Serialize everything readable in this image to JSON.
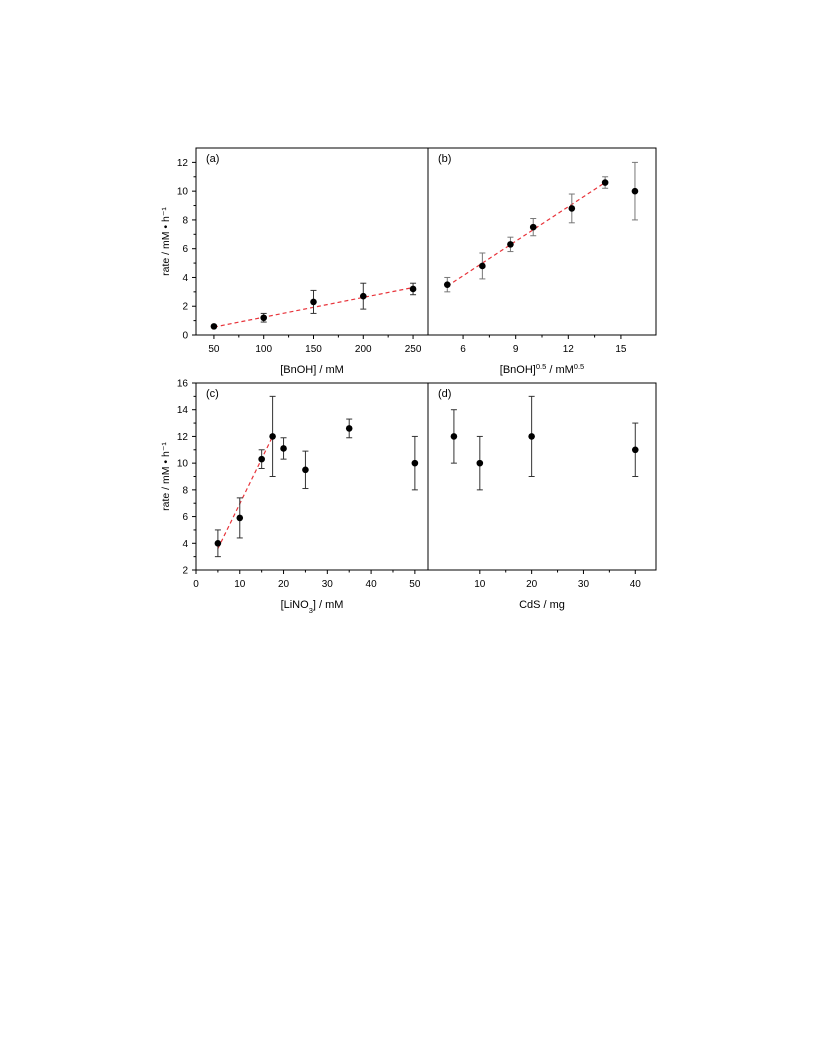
{
  "chart_data": [
    {
      "panel": "a",
      "type": "scatter",
      "panel_label": "(a)",
      "ylabel": "rate / mM • h⁻¹",
      "xlabel_parts": [
        {
          "t": "[BnOH] / mM"
        }
      ],
      "xlim": [
        32,
        265
      ],
      "ylim": [
        0,
        13
      ],
      "xticks": [
        50,
        100,
        150,
        200,
        250
      ],
      "yticks": [
        0,
        2,
        4,
        6,
        8,
        10,
        12
      ],
      "x": [
        50,
        100,
        150,
        200,
        250
      ],
      "y": [
        0.6,
        1.2,
        2.3,
        2.7,
        3.2
      ],
      "yerr": [
        0.0,
        0.3,
        0.8,
        0.9,
        0.4
      ],
      "fit": {
        "x": [
          50,
          250
        ],
        "y": [
          0.55,
          3.3
        ]
      }
    },
    {
      "panel": "b",
      "type": "scatter",
      "panel_label": "(b)",
      "xlabel_parts": [
        {
          "t": "[BnOH]"
        },
        {
          "t": "0.5",
          "sup": true
        },
        {
          "t": " / mM"
        },
        {
          "t": "0.5",
          "sup": true
        }
      ],
      "xlim": [
        4.0,
        17.0
      ],
      "ylim": [
        0,
        13
      ],
      "xticks": [
        6,
        9,
        12,
        15
      ],
      "x": [
        5.1,
        7.1,
        8.7,
        10.0,
        12.2,
        14.1,
        15.8
      ],
      "y": [
        3.5,
        4.8,
        6.3,
        7.5,
        8.8,
        10.6,
        10.0
      ],
      "yerr": [
        0.5,
        0.9,
        0.5,
        0.6,
        1.0,
        0.4,
        2.0
      ],
      "fit": {
        "x": [
          5.1,
          14.1
        ],
        "y": [
          3.4,
          10.6
        ]
      }
    },
    {
      "panel": "c",
      "type": "scatter",
      "panel_label": "(c)",
      "ylabel": "rate / mM • h⁻¹",
      "xlabel_parts": [
        {
          "t": "[LiNO"
        },
        {
          "t": "3",
          "sub": true
        },
        {
          "t": "] / mM"
        }
      ],
      "xlim": [
        0,
        53
      ],
      "ylim": [
        2,
        16
      ],
      "xticks": [
        0,
        10,
        20,
        30,
        40,
        50
      ],
      "yticks": [
        2,
        4,
        6,
        8,
        10,
        12,
        14,
        16
      ],
      "x": [
        5,
        10,
        15,
        17.5,
        20,
        25,
        35,
        50
      ],
      "y": [
        4.0,
        5.9,
        10.3,
        12.0,
        11.1,
        9.5,
        12.6,
        10.0
      ],
      "yerr": [
        1.0,
        1.5,
        0.7,
        3.0,
        0.8,
        1.4,
        0.7,
        2.0
      ],
      "fit": {
        "x": [
          5,
          17.5
        ],
        "y": [
          3.6,
          12.0
        ]
      }
    },
    {
      "panel": "d",
      "type": "scatter",
      "panel_label": "(d)",
      "xlabel_parts": [
        {
          "t": "CdS / mg"
        }
      ],
      "xlim": [
        0,
        44
      ],
      "ylim": [
        2,
        16
      ],
      "xticks": [
        10,
        20,
        30,
        40
      ],
      "x": [
        5,
        10,
        20,
        40
      ],
      "y": [
        12.0,
        10.0,
        12.0,
        11.0
      ],
      "yerr": [
        2.0,
        2.0,
        3.0,
        2.0
      ]
    }
  ]
}
